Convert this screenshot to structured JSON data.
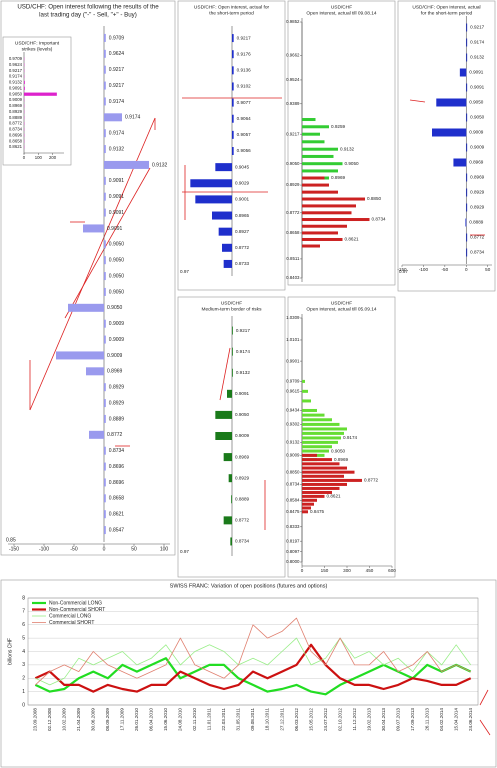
{
  "chart_data": [
    {
      "type": "bar",
      "title": [
        "USD/CHF: Open interest following the results of the",
        "last trading day (\"-\" - Sell, \"+\" - Buy)"
      ],
      "categories": [
        "0.9709",
        "0.9624",
        "0.9217",
        "0.9217",
        "0.9174",
        "0.9174",
        "0.9174",
        "0.9132",
        "0.9132",
        "0.9091",
        "0.9091",
        "0.9091",
        "0.9091",
        "0.9050",
        "0.9050",
        "0.9050",
        "0.9050",
        "0.9050",
        "0.9009",
        "0.9009",
        "0.9009",
        "0.8969",
        "0.8929",
        "0.8929",
        "0.8889",
        "0.8772",
        "0.8734",
        "0.8696",
        "0.8696",
        "0.8658",
        "0.8621",
        "0.8547"
      ],
      "series": [
        {
          "color": "#9a9aee",
          "values": [
            3,
            3,
            3,
            3,
            3,
            30,
            3,
            3,
            75,
            3,
            3,
            3,
            -35,
            3,
            3,
            3,
            3,
            -60,
            3,
            3,
            -80,
            -30,
            3,
            3,
            3,
            -25,
            3,
            3,
            3,
            3,
            3,
            3
          ]
        }
      ],
      "xlim": [
        -160,
        110
      ],
      "xticks": [
        -150,
        -100,
        -50,
        0,
        50,
        100
      ],
      "corner_label": "0.85"
    },
    {
      "type": "bar",
      "title": [
        "USD/CHF: Important",
        "strikes (levels)"
      ],
      "categories": [
        "0.9709",
        "0.9624",
        "0.9217",
        "0.9174",
        "0.9132",
        "0.9091",
        "0.9050",
        "0.9009",
        "0.8969",
        "0.8929",
        "0.8889",
        "0.8772",
        "0.8734",
        "0.8696",
        "0.8658",
        "0.8621"
      ],
      "series": [
        {
          "color": "#dd22cc",
          "values": [
            2,
            2,
            2,
            2,
            6,
            6,
            230,
            2,
            2,
            2,
            2,
            2,
            2,
            2,
            2,
            2
          ]
        }
      ],
      "xlim": [
        0,
        280
      ],
      "xticks": [
        0,
        100,
        200
      ]
    },
    {
      "type": "bar",
      "title": [
        "USD/CHF: Open interest, actual for",
        "the short-term period"
      ],
      "categories": [
        "0.9217",
        "0.9176",
        "0.9136",
        "0.9102",
        "0.9077",
        "0.9064",
        "0.9057",
        "0.9056",
        "0.9045",
        "0.9029",
        "0.9001",
        "0.8965",
        "0.8927",
        "0.8772",
        "0.8733"
      ],
      "series": [
        {
          "color": "#1f2fcc",
          "values": [
            1,
            1,
            1,
            1,
            1,
            1,
            1,
            1,
            -10,
            -25,
            -22,
            -12,
            -8,
            -6,
            -5
          ]
        }
      ],
      "xlim": [
        -30,
        30
      ],
      "corner_label": "0.97"
    },
    {
      "type": "bar",
      "title": [
        "USD/CHF",
        "Open interest, actual till 09.08.14"
      ],
      "y": [
        0.93,
        0.9259,
        0.9217,
        0.9174,
        0.9132,
        0.9091,
        0.905,
        0.9009,
        0.8969,
        0.8929,
        0.8889,
        0.885,
        0.8811,
        0.8772,
        0.8734,
        0.8696,
        0.8658,
        0.8621,
        0.8584
      ],
      "labels": [
        null,
        "0.9259",
        null,
        null,
        "0.9132",
        null,
        "0.9050",
        null,
        "0.8969",
        null,
        null,
        "0.8850",
        null,
        null,
        "0.8734",
        null,
        null,
        "0.8621",
        null
      ],
      "series": [
        {
          "color": "#33cc33",
          "values": [
            15,
            30,
            20,
            25,
            40,
            35,
            45,
            40,
            30,
            null,
            null,
            null,
            null,
            null,
            null,
            null,
            null,
            null,
            null
          ]
        },
        {
          "color": "#cc2222",
          "values": [
            null,
            null,
            null,
            null,
            null,
            null,
            null,
            null,
            25,
            30,
            40,
            70,
            60,
            55,
            75,
            50,
            40,
            45,
            20
          ]
        }
      ],
      "xlim": [
        0,
        100
      ],
      "ylim": [
        0.8403,
        0.9852
      ],
      "yticks": [
        {
          "value": 0.9852,
          "label": "0.9852"
        },
        {
          "value": 0.9662,
          "label": "0.9662"
        },
        {
          "value": 0.9524,
          "label": "0.9524"
        },
        {
          "value": 0.9389,
          "label": "0.9389"
        },
        {
          "value": 0.9217,
          "label": "0.9217"
        },
        {
          "value": 0.905,
          "label": "0.9050"
        },
        {
          "value": 0.8929,
          "label": "0.8929"
        },
        {
          "value": 0.8772,
          "label": "0.8772"
        },
        {
          "value": 0.8658,
          "label": "0.8658"
        },
        {
          "value": 0.8511,
          "label": "0.8511"
        },
        {
          "value": 0.8403,
          "label": "0.8403"
        }
      ]
    },
    {
      "type": "bar",
      "title": [
        "USD/CHF: Open interest, actual",
        "for the short-term period"
      ],
      "categories": [
        "0.9217",
        "0.9174",
        "0.9132",
        "0.9091",
        "0.9091",
        "0.9050",
        "0.9050",
        "0.9009",
        "0.9009",
        "0.8969",
        "0.8969",
        "0.8929",
        "0.8929",
        "0.8889",
        "0.8772",
        "0.8734"
      ],
      "series": [
        {
          "color": "#1f2fcc",
          "values": [
            2,
            2,
            2,
            -15,
            2,
            -70,
            2,
            -80,
            2,
            -30,
            2,
            2,
            2,
            -2,
            2,
            2
          ]
        }
      ],
      "xlim": [
        -150,
        60
      ],
      "xticks": [
        -150,
        -100,
        -50,
        0,
        50
      ],
      "corner_label": "0.97"
    },
    {
      "type": "bar",
      "title": [
        "USD/CHF",
        "Medium-term border of risks"
      ],
      "categories": [
        "0.9217",
        "0.9174",
        "0.9132",
        "0.9091",
        "0.9050",
        "0.9009",
        "0.8969",
        "0.8929",
        "0.8889",
        "0.8772",
        "0.8734"
      ],
      "series": [
        {
          "color": "#1a7a1a",
          "values": [
            0.5,
            0.5,
            0.5,
            -3,
            -10,
            -10,
            -5,
            -2,
            -0.5,
            -5,
            -1
          ]
        }
      ],
      "xlim": [
        -30,
        30
      ],
      "corner_label": "0.97"
    },
    {
      "type": "bar",
      "title": [
        "USD/CHF",
        "Open interest, actual till 05.09.14"
      ],
      "y": [
        0.9709,
        0.9615,
        0.9524,
        0.9434,
        0.939,
        0.9346,
        0.9302,
        0.9259,
        0.9217,
        0.9174,
        0.9132,
        0.9091,
        0.905,
        0.9009,
        0.8969,
        0.8929,
        0.8889,
        0.885,
        0.8811,
        0.8772,
        0.8734,
        0.8696,
        0.8658,
        0.8621,
        0.8584,
        0.8547,
        0.8511,
        0.8475
      ],
      "labels": [
        null,
        null,
        null,
        null,
        null,
        null,
        null,
        null,
        null,
        "0.9174",
        null,
        null,
        "0.9050",
        null,
        "0.8969",
        null,
        null,
        null,
        null,
        "0.8772",
        null,
        null,
        null,
        "0.8621",
        null,
        null,
        null,
        "0.8475"
      ],
      "series": [
        {
          "color": "#66dd33",
          "values": [
            20,
            40,
            60,
            100,
            150,
            200,
            250,
            300,
            280,
            260,
            240,
            200,
            180,
            150,
            100,
            null,
            null,
            null,
            null,
            null,
            null,
            null,
            null,
            null,
            null,
            null,
            null,
            null
          ]
        },
        {
          "color": "#cc2222",
          "values": [
            null,
            null,
            null,
            null,
            null,
            null,
            null,
            null,
            null,
            null,
            null,
            null,
            null,
            100,
            200,
            250,
            300,
            350,
            280,
            400,
            300,
            250,
            200,
            150,
            100,
            80,
            60,
            40
          ]
        }
      ],
      "xlim": [
        0,
        600
      ],
      "xticks": [
        0,
        150,
        300,
        450,
        600
      ],
      "ylim": [
        0.8,
        1.0309
      ],
      "yticks": [
        {
          "value": 1.0309,
          "label": "1.0309"
        },
        {
          "value": 1.0101,
          "label": "1.0101"
        },
        {
          "value": 0.9901,
          "label": "0.9901"
        },
        {
          "value": 0.9709,
          "label": "0.9709"
        },
        {
          "value": 0.9615,
          "label": "0.9615"
        },
        {
          "value": 0.9434,
          "label": "0.9434"
        },
        {
          "value": 0.9302,
          "label": "0.9302"
        },
        {
          "value": 0.9132,
          "label": "0.9132"
        },
        {
          "value": 0.9009,
          "label": "0.9009"
        },
        {
          "value": 0.885,
          "label": "0.8850"
        },
        {
          "value": 0.8734,
          "label": "0.8734"
        },
        {
          "value": 0.8584,
          "label": "0.8584"
        },
        {
          "value": 0.8475,
          "label": "0.8475"
        },
        {
          "value": 0.8333,
          "label": "0.8333"
        },
        {
          "value": 0.8197,
          "label": "0.8197"
        },
        {
          "value": 0.8097,
          "label": "0.8097"
        },
        {
          "value": 0.8,
          "label": "0.8000"
        }
      ]
    },
    {
      "type": "line",
      "title": [
        "SWISS FRANC: Variation of open positions (futures and options)"
      ],
      "ylabel": "billions CHF",
      "categories": [
        "23.09.2008",
        "02.12.2008",
        "10.02.2009",
        "21.04.2009",
        "30.06.2009",
        "08.09.2009",
        "17.11.2009",
        "26.01.2010",
        "06.04.2010",
        "15.06.2010",
        "24.08.2010",
        "02.11.2010",
        "11.01.2011",
        "22.03.2011",
        "31.05.2011",
        "09.08.2011",
        "18.10.2011",
        "27.12.2011",
        "06.03.2012",
        "15.05.2012",
        "24.07.2012",
        "02.10.2012",
        "11.12.2012",
        "19.02.2013",
        "30.04.2013",
        "09.07.2013",
        "17.09.2013",
        "26.11.2013",
        "04.02.2014",
        "15.04.2014",
        "24.06.2014"
      ],
      "series": [
        {
          "name": "Non-Commercial LONG",
          "color": "#22dd22",
          "width": 2.2,
          "values": [
            1.5,
            1,
            1.2,
            2,
            2.5,
            2,
            3,
            2.5,
            3,
            3.5,
            2,
            2.5,
            3,
            3,
            2,
            1.5,
            1,
            1.2,
            1.5,
            1,
            0.8,
            1.5,
            2,
            2.5,
            3,
            2.5,
            2,
            3,
            2.5,
            3,
            2.5
          ]
        },
        {
          "name": "Non-Commercial SHORT",
          "color": "#cc1111",
          "width": 2.2,
          "values": [
            2,
            2.5,
            1.5,
            1.5,
            1,
            1.5,
            1.2,
            1,
            1.5,
            1.5,
            2.5,
            2,
            1.5,
            1.2,
            1.5,
            2.5,
            2,
            2.5,
            3,
            4.5,
            3,
            2,
            1.5,
            1.5,
            1.2,
            1.5,
            2,
            1.8,
            1.5,
            1.5,
            2
          ]
        },
        {
          "name": "Commercial LONG",
          "color": "#99ee88",
          "width": 0.8,
          "values": [
            2,
            1.5,
            2,
            3.5,
            3,
            3.5,
            4,
            3,
            3.5,
            4.5,
            3,
            4,
            4.5,
            4,
            3,
            3.5,
            3,
            4,
            5,
            3,
            3.5,
            5,
            3.5,
            4,
            3,
            3.5,
            2.5,
            4,
            3,
            4.5,
            3
          ]
        },
        {
          "name": "Commercial SHORT",
          "color": "#e08070",
          "width": 0.8,
          "values": [
            1.5,
            2.5,
            3,
            2.5,
            4,
            3,
            2.5,
            2,
            2.5,
            3,
            5,
            3,
            2.5,
            2,
            3,
            6,
            5,
            5.5,
            6.5,
            4,
            3,
            5,
            3,
            3,
            4,
            2.5,
            3,
            4,
            2.5,
            3,
            2.5
          ]
        }
      ],
      "ylim": [
        0,
        8
      ],
      "yticks": [
        0,
        1,
        2,
        3,
        4,
        5,
        6,
        7,
        8
      ],
      "grid": true,
      "legend": "top-left"
    }
  ]
}
